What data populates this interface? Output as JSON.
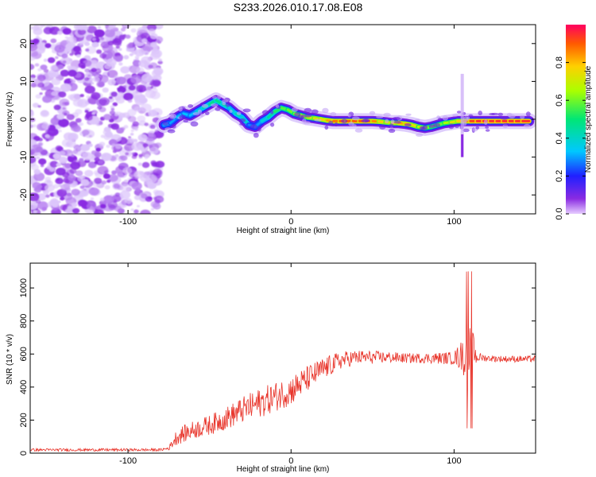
{
  "title": "S233.2026.010.17.08.E08",
  "chart_data": [
    {
      "type": "heatmap",
      "xlabel": "Height of straight line (km)",
      "ylabel": "Frequency (Hz)",
      "xlim": [
        -160,
        150
      ],
      "ylim": [
        -25,
        25
      ],
      "xticks": [
        -100,
        0,
        100
      ],
      "xtick_labels": [
        "-100",
        "0",
        "100"
      ],
      "yticks": [
        -20,
        -10,
        0,
        10,
        20
      ],
      "ytick_labels": [
        "-20",
        "-10",
        "0",
        "10",
        "20"
      ],
      "colorbar": {
        "label": "Normalized spectral amplitude",
        "range": [
          0,
          1
        ],
        "ticks": [
          0.0,
          0.2,
          0.4,
          0.6,
          0.8
        ],
        "tick_labels": [
          "0.0",
          "0.2",
          "0.4",
          "0.6",
          "0.8"
        ],
        "colormap": "rainbow"
      },
      "noise_region_x": [
        -160,
        -80
      ],
      "signal_track": {
        "x": [
          -78,
          -74,
          -70,
          -66,
          -62,
          -58,
          -54,
          -50,
          -46,
          -42,
          -38,
          -34,
          -30,
          -26,
          -22,
          -18,
          -14,
          -10,
          -6,
          -2,
          2,
          6,
          10,
          14,
          18,
          22,
          26,
          30,
          34,
          38,
          42,
          46,
          50,
          54,
          58,
          62,
          66,
          70,
          74,
          78,
          82,
          86,
          90,
          94,
          98,
          102,
          106,
          110,
          114,
          118,
          122,
          126,
          130,
          134,
          138,
          142,
          146
        ],
        "y": [
          -1.5,
          -1,
          0.5,
          1.5,
          1,
          2,
          3,
          4,
          5,
          4,
          3,
          1.5,
          0.5,
          -1.5,
          -2,
          -0.5,
          0.5,
          2,
          3,
          2.5,
          1.5,
          1,
          0.5,
          0.3,
          0,
          -0.3,
          -0.5,
          -0.5,
          -0.5,
          -0.5,
          -0.5,
          -0.5,
          -0.5,
          -0.6,
          -0.8,
          -1,
          -1,
          -1.2,
          -1.5,
          -2,
          -2.3,
          -2,
          -1.5,
          -1,
          -0.8,
          -0.5,
          -0.5,
          -0.5,
          -0.5,
          -0.5,
          -0.5,
          -0.5,
          -0.5,
          -0.5,
          -0.5,
          -0.5,
          -0.5
        ],
        "amplitude": [
          0.35,
          0.3,
          0.3,
          0.35,
          0.3,
          0.35,
          0.4,
          0.45,
          0.5,
          0.45,
          0.4,
          0.35,
          0.5,
          0.3,
          0.25,
          0.35,
          0.4,
          0.5,
          0.55,
          0.6,
          0.6,
          0.65,
          0.7,
          0.7,
          0.75,
          0.8,
          0.85,
          0.9,
          0.9,
          0.9,
          0.9,
          0.9,
          0.9,
          0.8,
          0.75,
          0.7,
          0.8,
          0.85,
          0.8,
          0.7,
          0.65,
          0.6,
          0.6,
          0.6,
          0.7,
          0.75,
          0.8,
          0.9,
          0.95,
          0.95,
          0.95,
          0.95,
          0.95,
          0.95,
          0.95,
          0.95,
          0.95
        ]
      },
      "spike_x": 105,
      "spike_y_range": [
        -10,
        12
      ]
    },
    {
      "type": "line",
      "xlabel": "Height of straight line (km)",
      "ylabel": "SNR (10 * v/v)",
      "xlim": [
        -160,
        150
      ],
      "ylim": [
        0,
        1150
      ],
      "xticks": [
        -100,
        0,
        100
      ],
      "xtick_labels": [
        "-100",
        "0",
        "100"
      ],
      "yticks": [
        0,
        200,
        400,
        600,
        800,
        1000
      ],
      "ytick_labels": [
        "0",
        "200",
        "400",
        "600",
        "800",
        "1000"
      ],
      "series": [
        {
          "color": "#e8352b",
          "envelope_x": [
            -160,
            -80,
            -75,
            -70,
            -60,
            -50,
            -40,
            -30,
            -20,
            -10,
            0,
            10,
            20,
            30,
            40,
            50,
            60,
            70,
            80,
            90,
            100,
            105,
            108,
            111,
            114,
            120,
            130,
            140,
            150
          ],
          "envelope_y": [
            20,
            20,
            30,
            100,
            140,
            170,
            210,
            260,
            300,
            340,
            380,
            450,
            510,
            560,
            580,
            580,
            580,
            575,
            575,
            575,
            575,
            590,
            600,
            600,
            580,
            575,
            570,
            570,
            570
          ],
          "noise_amplitude": [
            8,
            8,
            12,
            50,
            55,
            60,
            70,
            80,
            90,
            90,
            90,
            80,
            70,
            55,
            45,
            40,
            35,
            30,
            30,
            35,
            40,
            100,
            200,
            160,
            30,
            20,
            20,
            20,
            20
          ]
        }
      ]
    }
  ]
}
